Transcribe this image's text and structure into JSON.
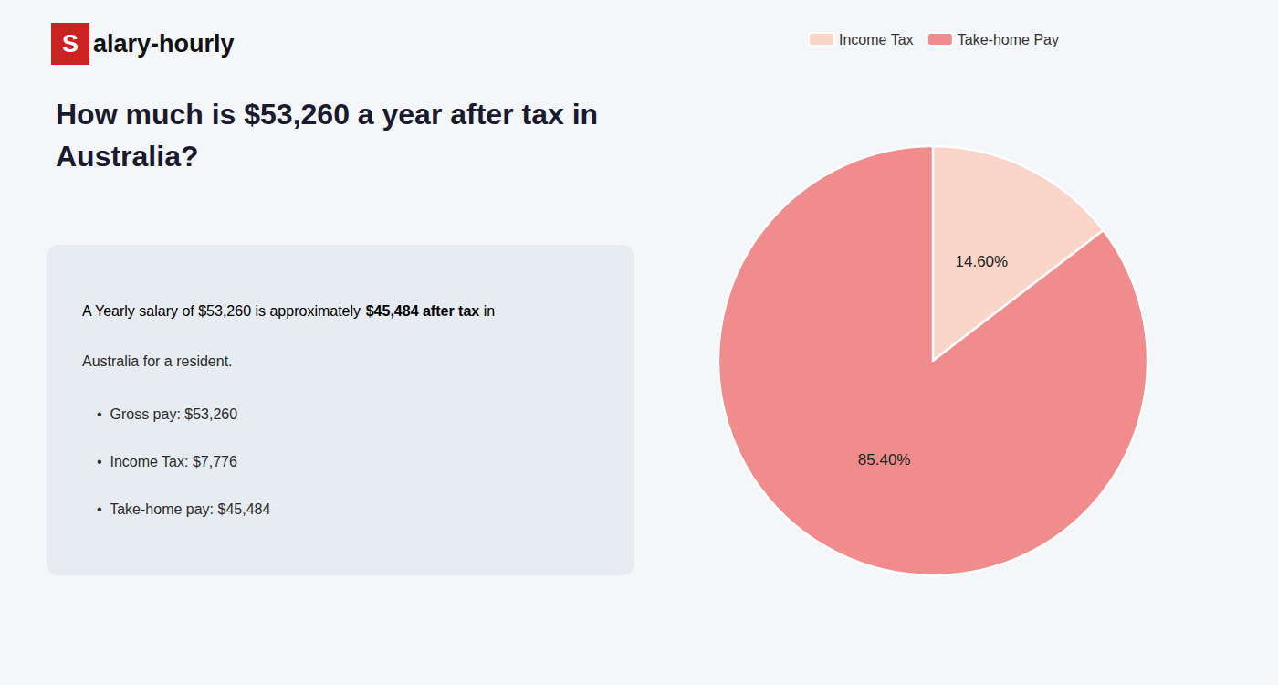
{
  "chart_data": {
    "type": "pie",
    "title": "How much is $53,260 a year after tax in\nAustralia?",
    "categories": [
      "Income Tax",
      "Take-home Pay"
    ],
    "values": [
      14.6,
      85.4
    ],
    "value_labels": [
      "14.60%",
      "85.40%"
    ],
    "colors": [
      "#fad5c8",
      "#f08c8c"
    ],
    "legend": "top",
    "annotations": [
      "S",
      "alary-hourly",
      "A Yearly salary of $53,260 is approximately ",
      "$45,484 after tax",
      " in",
      "Australia for a resident.",
      "•  Gross pay: $53,260",
      "•  Income Tax: $7,776",
      "•  Take-home pay: $45,484"
    ]
  }
}
